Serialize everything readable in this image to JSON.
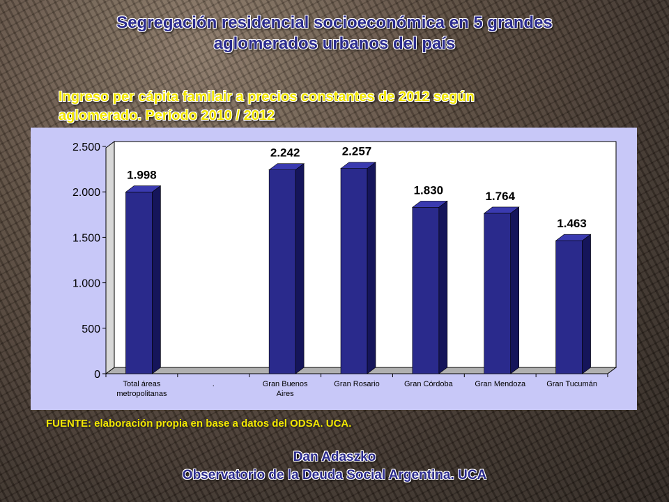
{
  "header": {
    "title_line1": "Segregación residencial socioeconómica en 5 grandes",
    "title_line2": "aglomerados urbanos del país"
  },
  "subtitle": {
    "line1": "Ingreso per cápita familair a precios constantes de 2012 según",
    "line2": "aglomerado. Período 2010 / 2012"
  },
  "source": "FUENTE: elaboración propia en base a datos del ODSA. UCA.",
  "author": {
    "name": "Dan Adaszko",
    "org": "Observatorio de la Deuda Social Argentina. UCA"
  },
  "colors": {
    "bar": "#2a2a8c",
    "plot_bg": "#c8c8f8",
    "title": "#2b2b8e",
    "subtitle": "#f2e600"
  },
  "chart_data": {
    "type": "bar",
    "categories": [
      [
        "Total áreas",
        "metropolitanas"
      ],
      [
        "."
      ],
      [
        "Gran Buenos",
        "Aires"
      ],
      [
        "Gran Rosario"
      ],
      [
        "Gran Córdoba"
      ],
      [
        "Gran Mendoza"
      ],
      [
        "Gran Tucumán"
      ]
    ],
    "values": [
      1998,
      null,
      2242,
      2257,
      1830,
      1764,
      1463
    ],
    "value_labels": [
      "1.998",
      "",
      "2.242",
      "2.257",
      "1.830",
      "1.764",
      "1.463"
    ],
    "yticks": [
      0,
      500,
      1000,
      1500,
      2000,
      2500
    ],
    "ytick_labels": [
      "0",
      "500",
      "1.000",
      "1.500",
      "2.000",
      "2.500"
    ],
    "ylim": [
      0,
      2500
    ],
    "grid": false,
    "style": "3d-column"
  }
}
